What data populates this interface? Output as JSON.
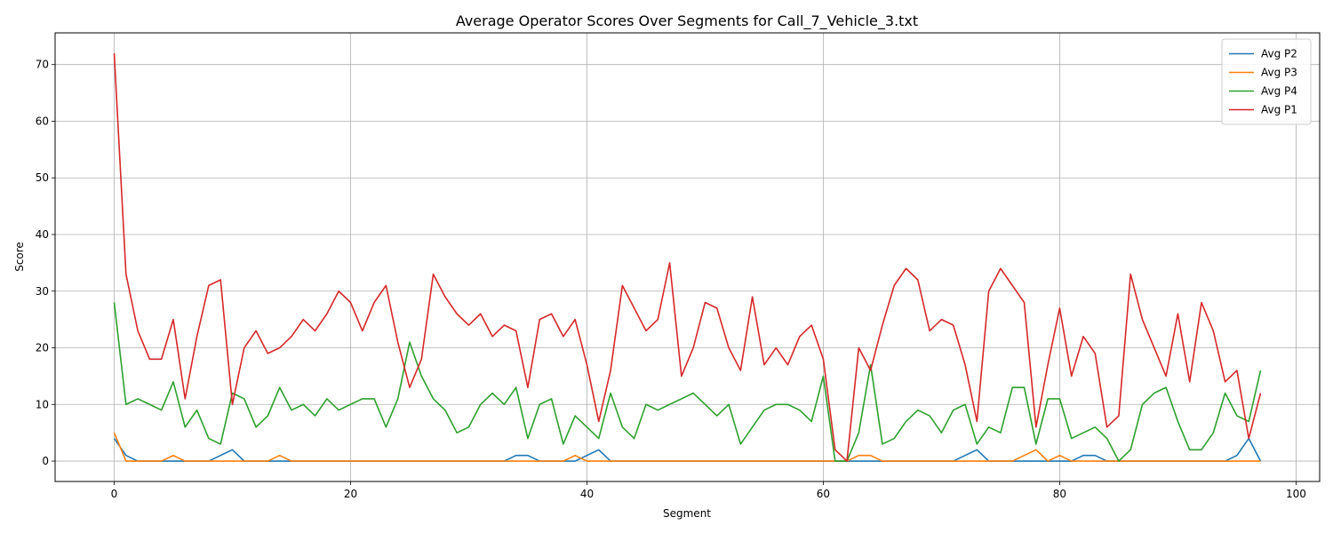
{
  "chart_data": {
    "type": "line",
    "title": "Average Operator Scores Over Segments for Call_7_Vehicle_3.txt",
    "xlabel": "Segment",
    "ylabel": "Score",
    "xlim": [
      -5,
      102
    ],
    "ylim": [
      -3.6,
      75.6
    ],
    "xticks": [
      0,
      20,
      40,
      60,
      80,
      100
    ],
    "yticks": [
      0,
      10,
      20,
      30,
      40,
      50,
      60,
      70
    ],
    "grid": true,
    "legend_position": "upper right",
    "series": [
      {
        "name": "Avg P2",
        "color": "#1f77b4",
        "values": [
          4,
          1,
          0,
          0,
          0,
          0,
          0,
          0,
          0,
          1,
          2,
          0,
          0,
          0,
          0,
          0,
          0,
          0,
          0,
          0,
          0,
          0,
          0,
          0,
          0,
          0,
          0,
          0,
          0,
          0,
          0,
          0,
          0,
          0,
          1,
          1,
          0,
          0,
          0,
          0,
          1,
          2,
          0,
          0,
          0,
          0,
          0,
          0,
          0,
          0,
          0,
          0,
          0,
          0,
          0,
          0,
          0,
          0,
          0,
          0,
          0,
          0,
          0,
          0,
          0,
          0,
          0,
          0,
          0,
          0,
          0,
          0,
          1,
          2,
          0,
          0,
          0,
          0,
          0,
          0,
          0,
          0,
          1,
          1,
          0,
          0,
          0,
          0,
          0,
          0,
          0,
          0,
          0,
          0,
          0,
          1,
          4,
          0
        ]
      },
      {
        "name": "Avg P3",
        "color": "#ff7f0e",
        "values": [
          5,
          0,
          0,
          0,
          0,
          1,
          0,
          0,
          0,
          0,
          0,
          0,
          0,
          0,
          1,
          0,
          0,
          0,
          0,
          0,
          0,
          0,
          0,
          0,
          0,
          0,
          0,
          0,
          0,
          0,
          0,
          0,
          0,
          0,
          0,
          0,
          0,
          0,
          0,
          1,
          0,
          0,
          0,
          0,
          0,
          0,
          0,
          0,
          0,
          0,
          0,
          0,
          0,
          0,
          0,
          0,
          0,
          0,
          0,
          0,
          0,
          0,
          0,
          1,
          1,
          0,
          0,
          0,
          0,
          0,
          0,
          0,
          0,
          0,
          0,
          0,
          0,
          1,
          2,
          0,
          1,
          0,
          0,
          0,
          0,
          0,
          0,
          0,
          0,
          0,
          0,
          0,
          0,
          0,
          0,
          0,
          0,
          0
        ]
      },
      {
        "name": "Avg P4",
        "color": "#2ca02c",
        "values": [
          28,
          10,
          11,
          10,
          9,
          14,
          6,
          9,
          4,
          3,
          12,
          11,
          6,
          8,
          13,
          9,
          10,
          8,
          11,
          9,
          10,
          11,
          11,
          6,
          11,
          21,
          15,
          11,
          9,
          5,
          6,
          10,
          12,
          10,
          13,
          4,
          10,
          11,
          3,
          8,
          6,
          4,
          12,
          6,
          4,
          10,
          9,
          10,
          11,
          12,
          10,
          8,
          10,
          3,
          6,
          9,
          10,
          10,
          9,
          7,
          15,
          0,
          0,
          5,
          17,
          3,
          4,
          7,
          9,
          8,
          5,
          9,
          10,
          3,
          6,
          5,
          13,
          13,
          3,
          11,
          11,
          4,
          5,
          6,
          4,
          0,
          2,
          10,
          12,
          13,
          7,
          2,
          2,
          5,
          12,
          8,
          7,
          16
        ]
      },
      {
        "name": "Avg P1",
        "color": "#d62728",
        "values": [
          72,
          33,
          23,
          18,
          18,
          25,
          11,
          22,
          31,
          32,
          10,
          20,
          23,
          19,
          20,
          22,
          25,
          23,
          26,
          30,
          28,
          23,
          28,
          31,
          21,
          13,
          18,
          33,
          29,
          26,
          24,
          26,
          22,
          24,
          23,
          13,
          25,
          26,
          22,
          25,
          17,
          7,
          16,
          31,
          27,
          23,
          25,
          35,
          15,
          20,
          28,
          27,
          20,
          16,
          29,
          17,
          20,
          17,
          22,
          24,
          18,
          2,
          0,
          20,
          16,
          24,
          31,
          34,
          32,
          23,
          25,
          24,
          17,
          7,
          30,
          34,
          31,
          28,
          6,
          17,
          27,
          15,
          22,
          19,
          6,
          8,
          33,
          25,
          20,
          15,
          26,
          14,
          28,
          23,
          14,
          16,
          4,
          12
        ]
      }
    ]
  }
}
